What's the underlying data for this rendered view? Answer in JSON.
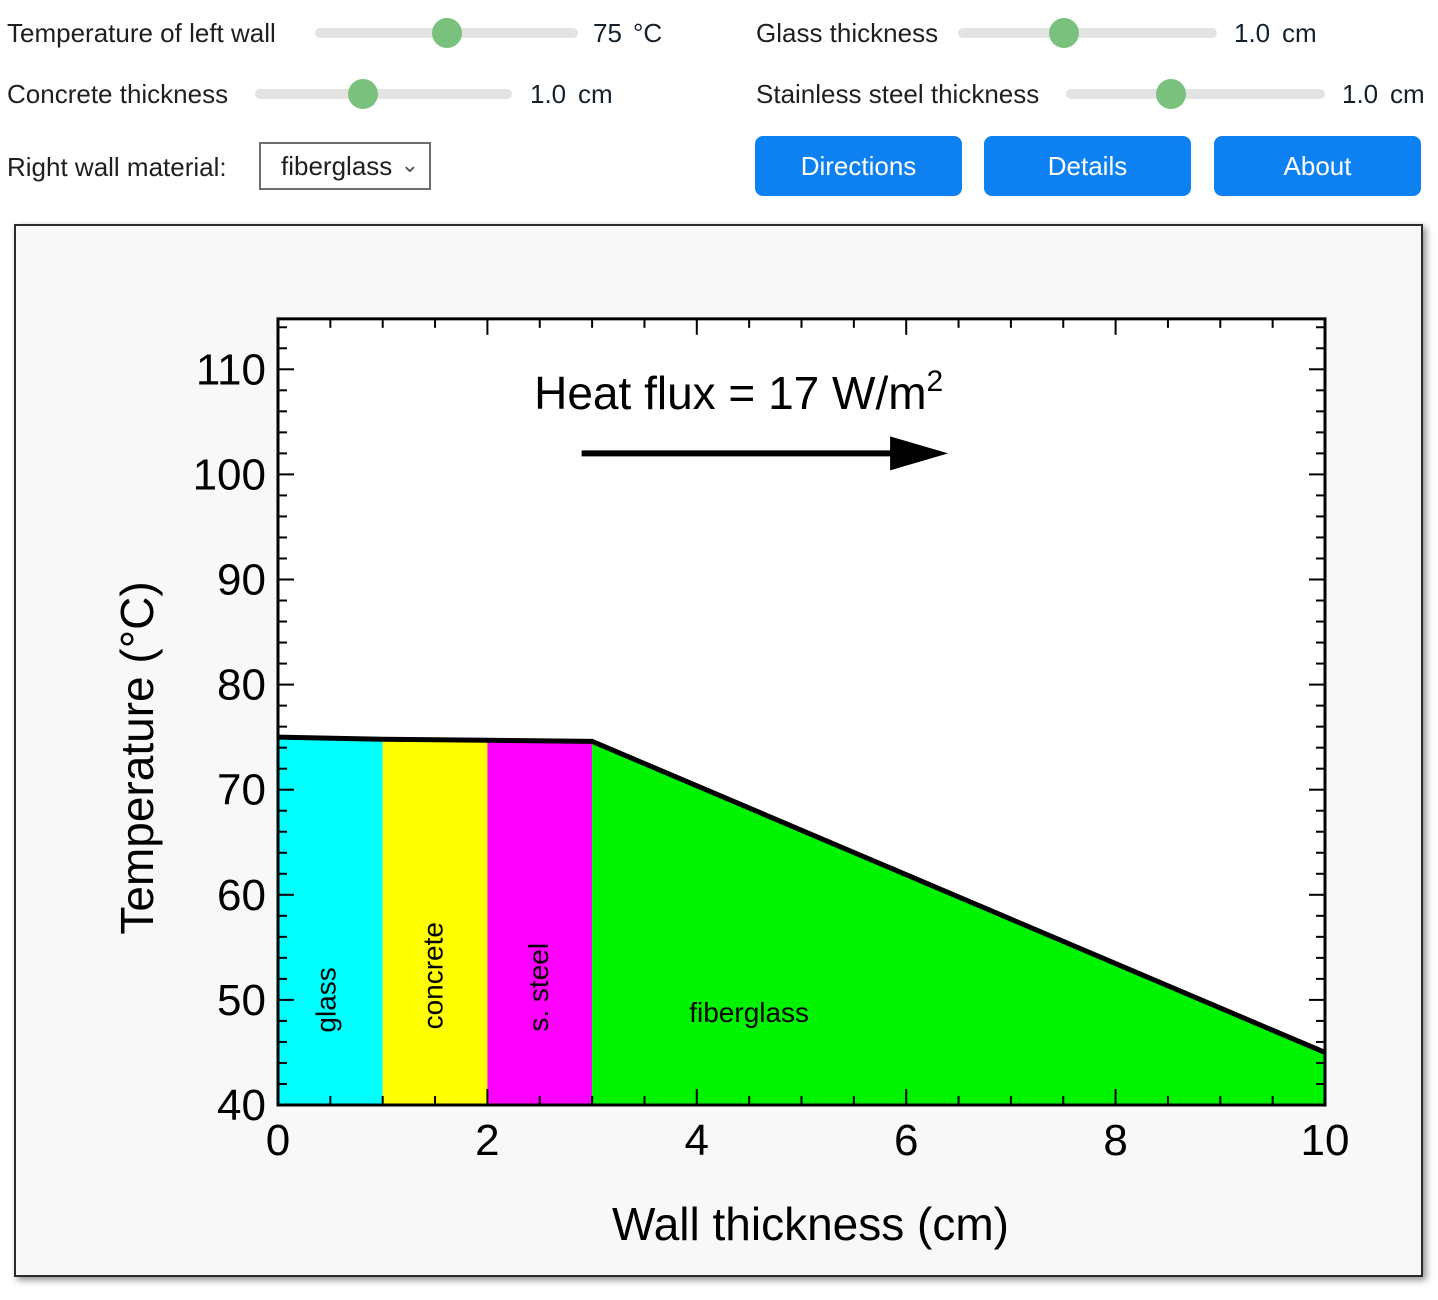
{
  "controls": {
    "temp_left_wall": {
      "label": "Temperature of left wall",
      "value": "75",
      "unit": "°C"
    },
    "concrete_thickness": {
      "label": "Concrete thickness",
      "value": "1.0",
      "unit": "cm"
    },
    "glass_thickness": {
      "label": "Glass thickness",
      "value": "1.0",
      "unit": "cm"
    },
    "steel_thickness": {
      "label": "Stainless steel thickness",
      "value": "1.0",
      "unit": "cm"
    },
    "right_wall_material": {
      "label": "Right wall material:",
      "selected": "fiberglass"
    }
  },
  "toolbar": {
    "directions": "Directions",
    "details": "Details",
    "about": "About"
  },
  "colors": {
    "button_blue": "#0d80f2",
    "slider_thumb_green": "#7ac17e",
    "slider_track_gray": "#e3e3e3",
    "glass": "#00ffff",
    "concrete": "#ffff00",
    "steel": "#ff00ff",
    "fiberglass": "#00f400"
  },
  "chart_data": {
    "type": "area",
    "xlabel": "Wall thickness (cm)",
    "ylabel": "Temperature (°C)",
    "xlim": [
      0,
      10
    ],
    "ylim": [
      40,
      114.8
    ],
    "x_major_ticks": [
      0,
      2,
      4,
      6,
      8,
      10
    ],
    "x_minor_step": 0.5,
    "y_major_ticks": [
      40,
      50,
      60,
      70,
      80,
      90,
      100,
      110
    ],
    "y_minor_step": 2,
    "grid": false,
    "annotation": {
      "text": "Heat flux = 17 W/m",
      "sup": "2",
      "x": 4.4,
      "y": 106.2
    },
    "arrow": {
      "x1": 2.9,
      "x2": 6.4,
      "y": 102
    },
    "layers": [
      {
        "name": "glass",
        "color": "#00ffff",
        "x0": 0,
        "x1": 1,
        "label_x": 0.55,
        "label_y": 50.0,
        "rotated": true
      },
      {
        "name": "concrete",
        "color": "#ffff00",
        "x0": 1,
        "x1": 2,
        "label_x": 1.57,
        "label_y": 52.3,
        "rotated": true
      },
      {
        "name": "s. steel",
        "color": "#ff00ff",
        "x0": 2,
        "x1": 3,
        "label_x": 2.58,
        "label_y": 51.2,
        "rotated": true
      },
      {
        "name": "fiberglass",
        "color": "#00f400",
        "x0": 3,
        "x1": 10,
        "label_x": 4.5,
        "label_y": 47.9,
        "rotated": false
      }
    ],
    "temperature_profile": {
      "x": [
        0,
        1,
        2,
        3,
        10
      ],
      "y": [
        75,
        74.8,
        74.7,
        74.6,
        45
      ]
    }
  }
}
